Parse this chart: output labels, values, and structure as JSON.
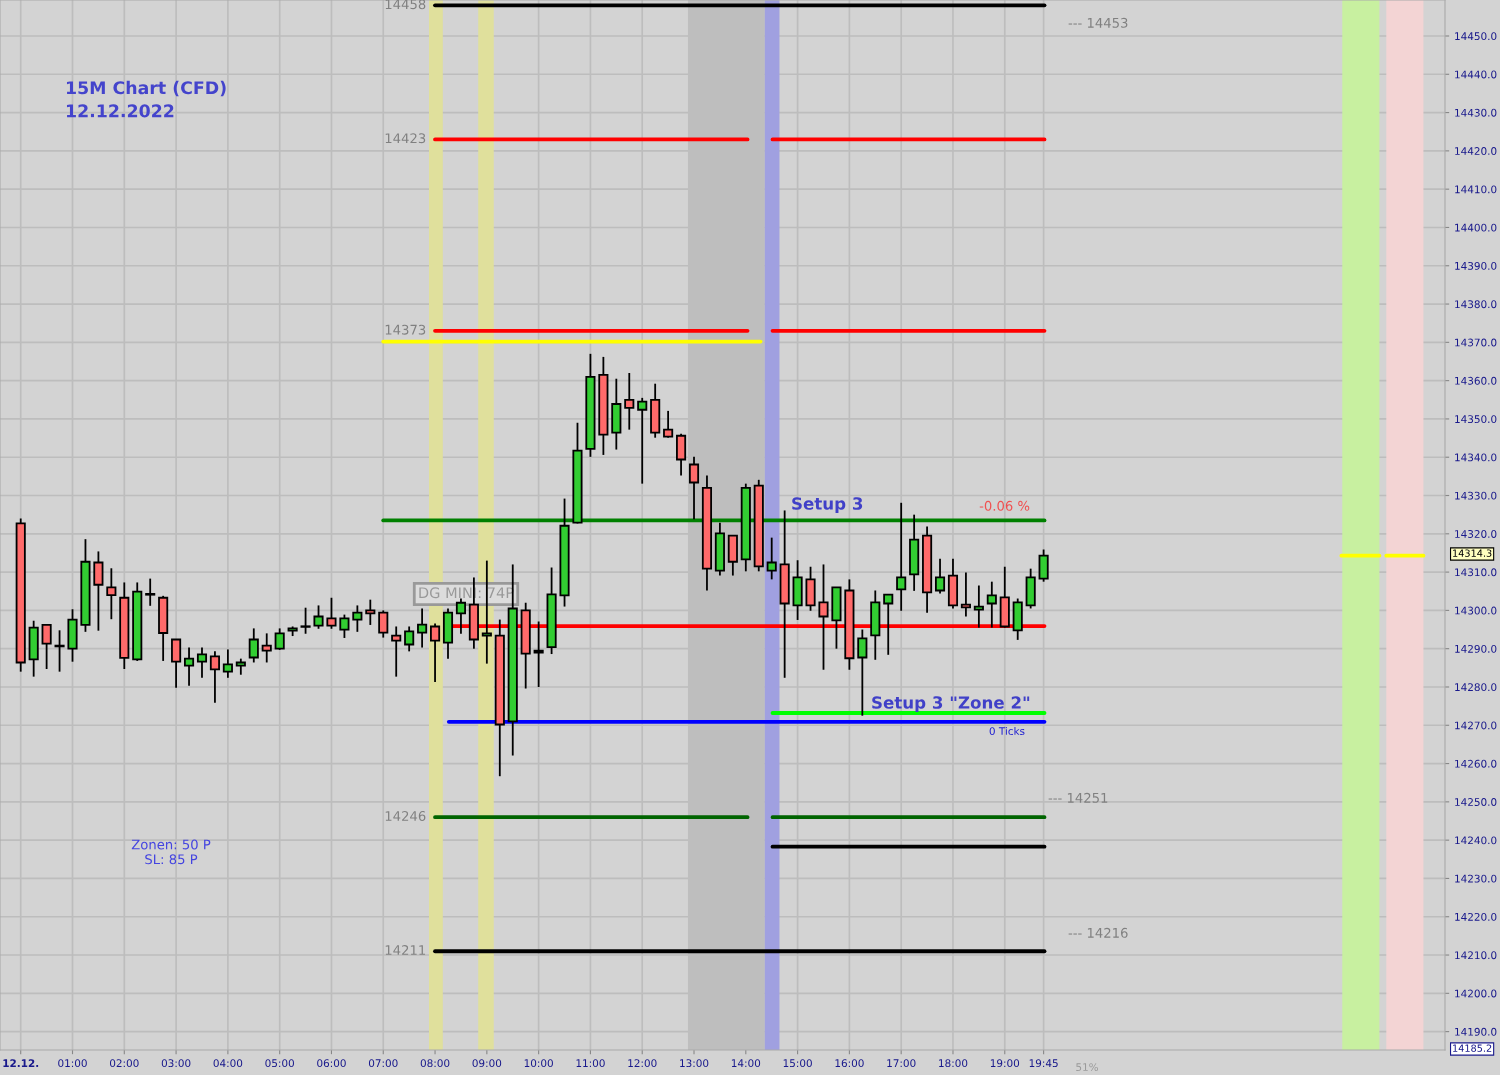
{
  "chart_data": {
    "type": "candlestick",
    "title": "15M Chart (CFD)",
    "subtitle": "12.12.2022",
    "x": [
      "2022-12-12T00:00",
      "2022-12-12T00:15",
      "2022-12-12T00:30",
      "2022-12-12T00:45",
      "2022-12-12T01:00",
      "2022-12-12T01:15",
      "2022-12-12T01:30",
      "2022-12-12T01:45",
      "2022-12-12T02:00",
      "2022-12-12T02:15",
      "2022-12-12T02:30",
      "2022-12-12T02:45",
      "2022-12-12T03:00",
      "2022-12-12T03:15",
      "2022-12-12T03:30",
      "2022-12-12T03:45",
      "2022-12-12T04:00",
      "2022-12-12T04:15",
      "2022-12-12T04:30",
      "2022-12-12T04:45",
      "2022-12-12T05:00",
      "2022-12-12T05:15",
      "2022-12-12T05:30",
      "2022-12-12T05:45",
      "2022-12-12T06:00",
      "2022-12-12T06:15",
      "2022-12-12T06:30",
      "2022-12-12T06:45",
      "2022-12-12T07:00",
      "2022-12-12T07:15",
      "2022-12-12T07:30",
      "2022-12-12T07:45",
      "2022-12-12T08:00",
      "2022-12-12T08:15",
      "2022-12-12T08:30",
      "2022-12-12T08:45",
      "2022-12-12T09:00",
      "2022-12-12T09:15",
      "2022-12-12T09:30",
      "2022-12-12T09:45",
      "2022-12-12T10:00",
      "2022-12-12T10:15",
      "2022-12-12T10:30",
      "2022-12-12T10:45",
      "2022-12-12T11:00",
      "2022-12-12T11:15",
      "2022-12-12T11:30",
      "2022-12-12T11:45",
      "2022-12-12T12:00",
      "2022-12-12T12:15",
      "2022-12-12T12:30",
      "2022-12-12T12:45",
      "2022-12-12T13:00",
      "2022-12-12T13:15",
      "2022-12-12T13:30",
      "2022-12-12T13:45",
      "2022-12-12T14:00",
      "2022-12-12T14:15",
      "2022-12-12T14:30",
      "2022-12-12T14:45",
      "2022-12-12T15:00",
      "2022-12-12T15:15",
      "2022-12-12T15:30",
      "2022-12-12T15:45",
      "2022-12-12T16:00",
      "2022-12-12T16:15",
      "2022-12-12T16:30",
      "2022-12-12T16:45",
      "2022-12-12T17:00",
      "2022-12-12T17:15",
      "2022-12-12T17:30",
      "2022-12-12T17:45",
      "2022-12-12T18:00",
      "2022-12-12T18:15",
      "2022-12-12T18:30",
      "2022-12-12T18:45",
      "2022-12-12T19:00",
      "2022-12-12T19:15",
      "2022-12-12T19:30",
      "2022-12-12T19:45"
    ],
    "ohlc": [
      [
        14322.7,
        14324.0,
        14284.0,
        14286.4
      ],
      [
        14287.2,
        14297.3,
        14282.7,
        14295.5
      ],
      [
        14296.2,
        14296.2,
        14284.7,
        14291.3
      ],
      [
        14290.8,
        14294.8,
        14284.0,
        14290.6
      ],
      [
        14290.0,
        14300.3,
        14286.6,
        14297.6
      ],
      [
        14296.2,
        14318.6,
        14294.4,
        14312.7
      ],
      [
        14312.5,
        14315.4,
        14294.7,
        14306.7
      ],
      [
        14306.0,
        14311.0,
        14297.7,
        14304.0
      ],
      [
        14303.3,
        14307.3,
        14284.7,
        14287.6
      ],
      [
        14287.2,
        14307.3,
        14286.8,
        14304.9
      ],
      [
        14304.3,
        14308.3,
        14301.2,
        14304.1
      ],
      [
        14303.3,
        14303.8,
        14286.8,
        14294.1
      ],
      [
        14292.4,
        14292.4,
        14279.8,
        14286.6
      ],
      [
        14285.6,
        14290.3,
        14280.3,
        14287.4
      ],
      [
        14286.6,
        14290.3,
        14282.4,
        14288.5
      ],
      [
        14288.0,
        14289.3,
        14275.9,
        14284.6
      ],
      [
        14284.0,
        14289.8,
        14282.4,
        14285.9
      ],
      [
        14285.6,
        14287.4,
        14283.2,
        14286.4
      ],
      [
        14287.7,
        14295.3,
        14286.4,
        14292.4
      ],
      [
        14290.8,
        14294.0,
        14286.4,
        14289.5
      ],
      [
        14290.0,
        14295.3,
        14289.7,
        14294.0
      ],
      [
        14294.7,
        14295.8,
        14293.3,
        14295.3
      ],
      [
        14295.7,
        14300.7,
        14293.9,
        14295.8
      ],
      [
        14296.0,
        14301.3,
        14295.2,
        14298.4
      ],
      [
        14297.9,
        14303.3,
        14295.2,
        14296.0
      ],
      [
        14295.0,
        14298.9,
        14292.8,
        14297.9
      ],
      [
        14297.6,
        14301.3,
        14294.4,
        14299.4
      ],
      [
        14300.0,
        14302.8,
        14296.2,
        14299.2
      ],
      [
        14299.4,
        14300.0,
        14292.9,
        14294.2
      ],
      [
        14293.4,
        14295.8,
        14282.7,
        14292.1
      ],
      [
        14291.1,
        14295.8,
        14289.3,
        14294.5
      ],
      [
        14294.2,
        14300.5,
        14290.3,
        14296.3
      ],
      [
        14295.8,
        14296.6,
        14281.3,
        14292.1
      ],
      [
        14291.6,
        14300.5,
        14287.4,
        14299.4
      ],
      [
        14299.2,
        14303.1,
        14293.9,
        14302.0
      ],
      [
        14301.5,
        14308.6,
        14290.0,
        14292.4
      ],
      [
        14293.4,
        14313.0,
        14286.1,
        14294.0
      ],
      [
        14293.4,
        14297.6,
        14256.7,
        14270.2
      ],
      [
        14271.0,
        14312.0,
        14262.1,
        14300.5
      ],
      [
        14300.0,
        14302.0,
        14279.6,
        14288.7
      ],
      [
        14289.5,
        14297.1,
        14280.0,
        14289.0
      ],
      [
        14290.4,
        14311.2,
        14288.6,
        14304.2
      ],
      [
        14303.9,
        14329.2,
        14301.0,
        14322.1
      ],
      [
        14322.9,
        14349.0,
        14322.7,
        14341.7
      ],
      [
        14342.2,
        14367.0,
        14340.1,
        14361.0
      ],
      [
        14361.5,
        14366.2,
        14340.6,
        14345.9
      ],
      [
        14346.4,
        14360.5,
        14342.0,
        14353.9
      ],
      [
        14355.0,
        14362.0,
        14347.2,
        14352.9
      ],
      [
        14352.4,
        14355.5,
        14333.1,
        14354.5
      ],
      [
        14355.0,
        14359.2,
        14345.1,
        14346.4
      ],
      [
        14347.2,
        14352.1,
        14345.1,
        14345.4
      ],
      [
        14345.6,
        14346.1,
        14335.2,
        14339.4
      ],
      [
        14338.1,
        14340.1,
        14323.8,
        14333.4
      ],
      [
        14332.0,
        14335.2,
        14305.2,
        14310.9
      ],
      [
        14310.4,
        14322.9,
        14309.1,
        14320.1
      ],
      [
        14319.5,
        14319.5,
        14309.1,
        14312.7
      ],
      [
        14313.3,
        14333.1,
        14310.2,
        14332.0
      ],
      [
        14332.6,
        14334.1,
        14310.2,
        14311.5
      ],
      [
        14310.4,
        14319.0,
        14308.1,
        14312.5
      ],
      [
        14312.0,
        14326.1,
        14282.4,
        14301.8
      ],
      [
        14301.3,
        14313.1,
        14297.5,
        14308.6
      ],
      [
        14308.1,
        14311.4,
        14299.9,
        14301.3
      ],
      [
        14302.1,
        14312.0,
        14284.5,
        14298.4
      ],
      [
        14297.4,
        14306.0,
        14290.0,
        14306.0
      ],
      [
        14305.2,
        14308.1,
        14284.5,
        14287.5
      ],
      [
        14287.7,
        14295.0,
        14272.5,
        14292.7
      ],
      [
        14293.5,
        14305.2,
        14287.1,
        14302.1
      ],
      [
        14301.8,
        14304.1,
        14288.4,
        14304.1
      ],
      [
        14305.5,
        14328.1,
        14299.9,
        14308.6
      ],
      [
        14309.4,
        14325.0,
        14305.1,
        14318.5
      ],
      [
        14319.5,
        14321.9,
        14299.4,
        14304.7
      ],
      [
        14305.2,
        14313.5,
        14304.4,
        14308.6
      ],
      [
        14309.1,
        14313.5,
        14300.5,
        14301.3
      ],
      [
        14301.5,
        14309.9,
        14298.4,
        14300.8
      ],
      [
        14300.2,
        14306.5,
        14295.5,
        14301.0
      ],
      [
        14301.8,
        14307.5,
        14295.5,
        14303.9
      ],
      [
        14303.4,
        14311.4,
        14295.5,
        14295.8
      ],
      [
        14294.8,
        14303.1,
        14292.3,
        14302.1
      ],
      [
        14301.3,
        14310.9,
        14300.5,
        14308.6
      ],
      [
        14308.3,
        14315.9,
        14307.5,
        14314.3
      ]
    ],
    "series": [
      {
        "type": "line",
        "name": "14458",
        "color": "#000000",
        "x": [
          "2022-12-12T08:00",
          "2022-12-12T19:46"
        ],
        "values": [
          14458,
          14458
        ]
      },
      {
        "type": "line",
        "name": "14423",
        "color": "#ff0000",
        "x": [
          "2022-12-12T08:00",
          "2022-12-12T14:02",
          "2022-12-12T14:16",
          "2022-12-12T14:31",
          "2022-12-12T19:46"
        ],
        "values": [
          14423,
          14423,
          null,
          14423,
          14423
        ]
      },
      {
        "type": "line",
        "name": "14373",
        "color": "#ff0000",
        "x": [
          "2022-12-12T08:00",
          "2022-12-12T14:02",
          "2022-12-12T14:16",
          "2022-12-12T14:31",
          "2022-12-12T19:46"
        ],
        "values": [
          14373,
          14373,
          null,
          14373,
          14373
        ]
      },
      {
        "type": "line",
        "color": "#ffff00",
        "x": [
          "2022-12-12T07:00",
          "2022-12-12T14:17"
        ],
        "values": [
          14370.2,
          14370.2
        ]
      },
      {
        "type": "line",
        "color": "#008000",
        "x": [
          "2022-12-12T07:00",
          "2022-12-12T19:46"
        ],
        "values": [
          14323.5,
          14323.5
        ]
      },
      {
        "type": "line",
        "color": "#ff0000",
        "x": [
          "2022-12-12T08:18",
          "2022-12-12T19:46"
        ],
        "values": [
          14295.9,
          14295.9
        ]
      },
      {
        "type": "line",
        "color": "#00ff00",
        "x": [
          "2022-12-12T14:31",
          "2022-12-12T19:46"
        ],
        "values": [
          14273.2,
          14273.2
        ]
      },
      {
        "type": "line",
        "color": "#0000ff",
        "x": [
          "2022-12-12T08:16",
          "2022-12-12T19:46"
        ],
        "values": [
          14270.9,
          14270.9
        ]
      },
      {
        "type": "line",
        "name": "14246",
        "color": "#006400",
        "x": [
          "2022-12-12T08:00",
          "2022-12-12T14:02",
          "2022-12-12T14:16",
          "2022-12-12T14:31",
          "2022-12-12T19:46"
        ],
        "values": [
          14246,
          14246,
          null,
          14246,
          14246
        ]
      },
      {
        "type": "line",
        "color": "#000000",
        "x": [
          "2022-12-12T14:31",
          "2022-12-12T19:46"
        ],
        "values": [
          14238.3,
          14238.3
        ]
      },
      {
        "type": "line",
        "name": "14211",
        "color": "#000000",
        "x": [
          "2022-12-12T08:00",
          "2022-12-12T19:46"
        ],
        "values": [
          14211,
          14211
        ]
      },
      {
        "type": "line",
        "color": "#ffff00",
        "x": [
          "2022-12-13T01:30",
          "2022-12-13T02:14",
          "2022-12-13T02:18",
          "2022-12-13T02:22",
          "2022-12-13T03:05"
        ],
        "values": [
          14314.3,
          14314.3,
          null,
          14314.3,
          14314.3
        ]
      }
    ],
    "bands": [
      {
        "axis": "x",
        "from": "2022-12-12T07:53",
        "to": "2022-12-12T08:09",
        "color": "#e0e09c"
      },
      {
        "axis": "x",
        "from": "2022-12-12T08:50",
        "to": "2022-12-12T09:08",
        "color": "#e0e09c"
      },
      {
        "axis": "x",
        "from": "2022-12-12T12:53",
        "to": "2022-12-12T14:22",
        "color": "#bebebe"
      },
      {
        "axis": "x",
        "from": "2022-12-12T14:22",
        "to": "2022-12-12T14:39",
        "color": "#a0a0e0"
      },
      {
        "axis": "x",
        "from": "2022-12-13T01:31",
        "to": "2022-12-13T02:14",
        "color": "#c8f0a0"
      },
      {
        "axis": "x",
        "from": "2022-12-13T02:22",
        "to": "2022-12-13T03:05",
        "color": "#f3d4d4"
      }
    ],
    "annotations": [
      "DG MINI: 74P",
      "--- 14453",
      "--- 14251",
      "--- 14216",
      "Setup 3",
      "-0.06 %",
      "Setup 3 \"Zone 2\"",
      "0 Ticks",
      "14314.3",
      "14185.2",
      "Zonen: 50 P\nSL: 85 P",
      "51%"
    ],
    "xlim": [
      "2022-12-11T23:36",
      "2022-12-13T03:30"
    ],
    "ylim": [
      14185.2,
      14459.4
    ],
    "xticks": [
      {
        "value": "2022-12-12T00:00",
        "label": "12.12."
      },
      {
        "value": "2022-12-12T01:00",
        "label": "01:00"
      },
      {
        "value": "2022-12-12T02:00",
        "label": "02:00"
      },
      {
        "value": "2022-12-12T03:00",
        "label": "03:00"
      },
      {
        "value": "2022-12-12T04:00",
        "label": "04:00"
      },
      {
        "value": "2022-12-12T05:00",
        "label": "05:00"
      },
      {
        "value": "2022-12-12T06:00",
        "label": "06:00"
      },
      {
        "value": "2022-12-12T07:00",
        "label": "07:00"
      },
      {
        "value": "2022-12-12T08:00",
        "label": "08:00"
      },
      {
        "value": "2022-12-12T09:00",
        "label": "09:00"
      },
      {
        "value": "2022-12-12T10:00",
        "label": "10:00"
      },
      {
        "value": "2022-12-12T11:00",
        "label": "11:00"
      },
      {
        "value": "2022-12-12T12:00",
        "label": "12:00"
      },
      {
        "value": "2022-12-12T13:00",
        "label": "13:00"
      },
      {
        "value": "2022-12-12T14:00",
        "label": "14:00"
      },
      {
        "value": "2022-12-12T15:00",
        "label": "15:00"
      },
      {
        "value": "2022-12-12T16:00",
        "label": "16:00"
      },
      {
        "value": "2022-12-12T17:00",
        "label": "17:00"
      },
      {
        "value": "2022-12-12T18:00",
        "label": "18:00"
      },
      {
        "value": "2022-12-12T19:00",
        "label": "19:00"
      },
      {
        "value": "2022-12-12T19:45",
        "label": "19:45"
      }
    ],
    "yticks": [
      {
        "value": 14190,
        "label": "14190.0"
      },
      {
        "value": 14200,
        "label": "14200.0"
      },
      {
        "value": 14210,
        "label": "14210.0"
      },
      {
        "value": 14220,
        "label": "14220.0"
      },
      {
        "value": 14230,
        "label": "14230.0"
      },
      {
        "value": 14240,
        "label": "14240.0"
      },
      {
        "value": 14250,
        "label": "14250.0"
      },
      {
        "value": 14260,
        "label": "14260.0"
      },
      {
        "value": 14270,
        "label": "14270.0"
      },
      {
        "value": 14280,
        "label": "14280.0"
      },
      {
        "value": 14290,
        "label": "14290.0"
      },
      {
        "value": 14300,
        "label": "14300.0"
      },
      {
        "value": 14310,
        "label": "14310.0"
      },
      {
        "value": 14320,
        "label": "14320.0"
      },
      {
        "value": 14330,
        "label": "14330.0"
      },
      {
        "value": 14340,
        "label": "14340.0"
      },
      {
        "value": 14350,
        "label": "14350.0"
      },
      {
        "value": 14360,
        "label": "14360.0"
      },
      {
        "value": 14370,
        "label": "14370.0"
      },
      {
        "value": 14380,
        "label": "14380.0"
      },
      {
        "value": 14390,
        "label": "14390.0"
      },
      {
        "value": 14400,
        "label": "14400.0"
      },
      {
        "value": 14410,
        "label": "14410.0"
      },
      {
        "value": 14420,
        "label": "14420.0"
      },
      {
        "value": 14430,
        "label": "14430.0"
      },
      {
        "value": 14440,
        "label": "14440.0"
      },
      {
        "value": 14450,
        "label": "14450.0"
      }
    ],
    "grid": true
  }
}
